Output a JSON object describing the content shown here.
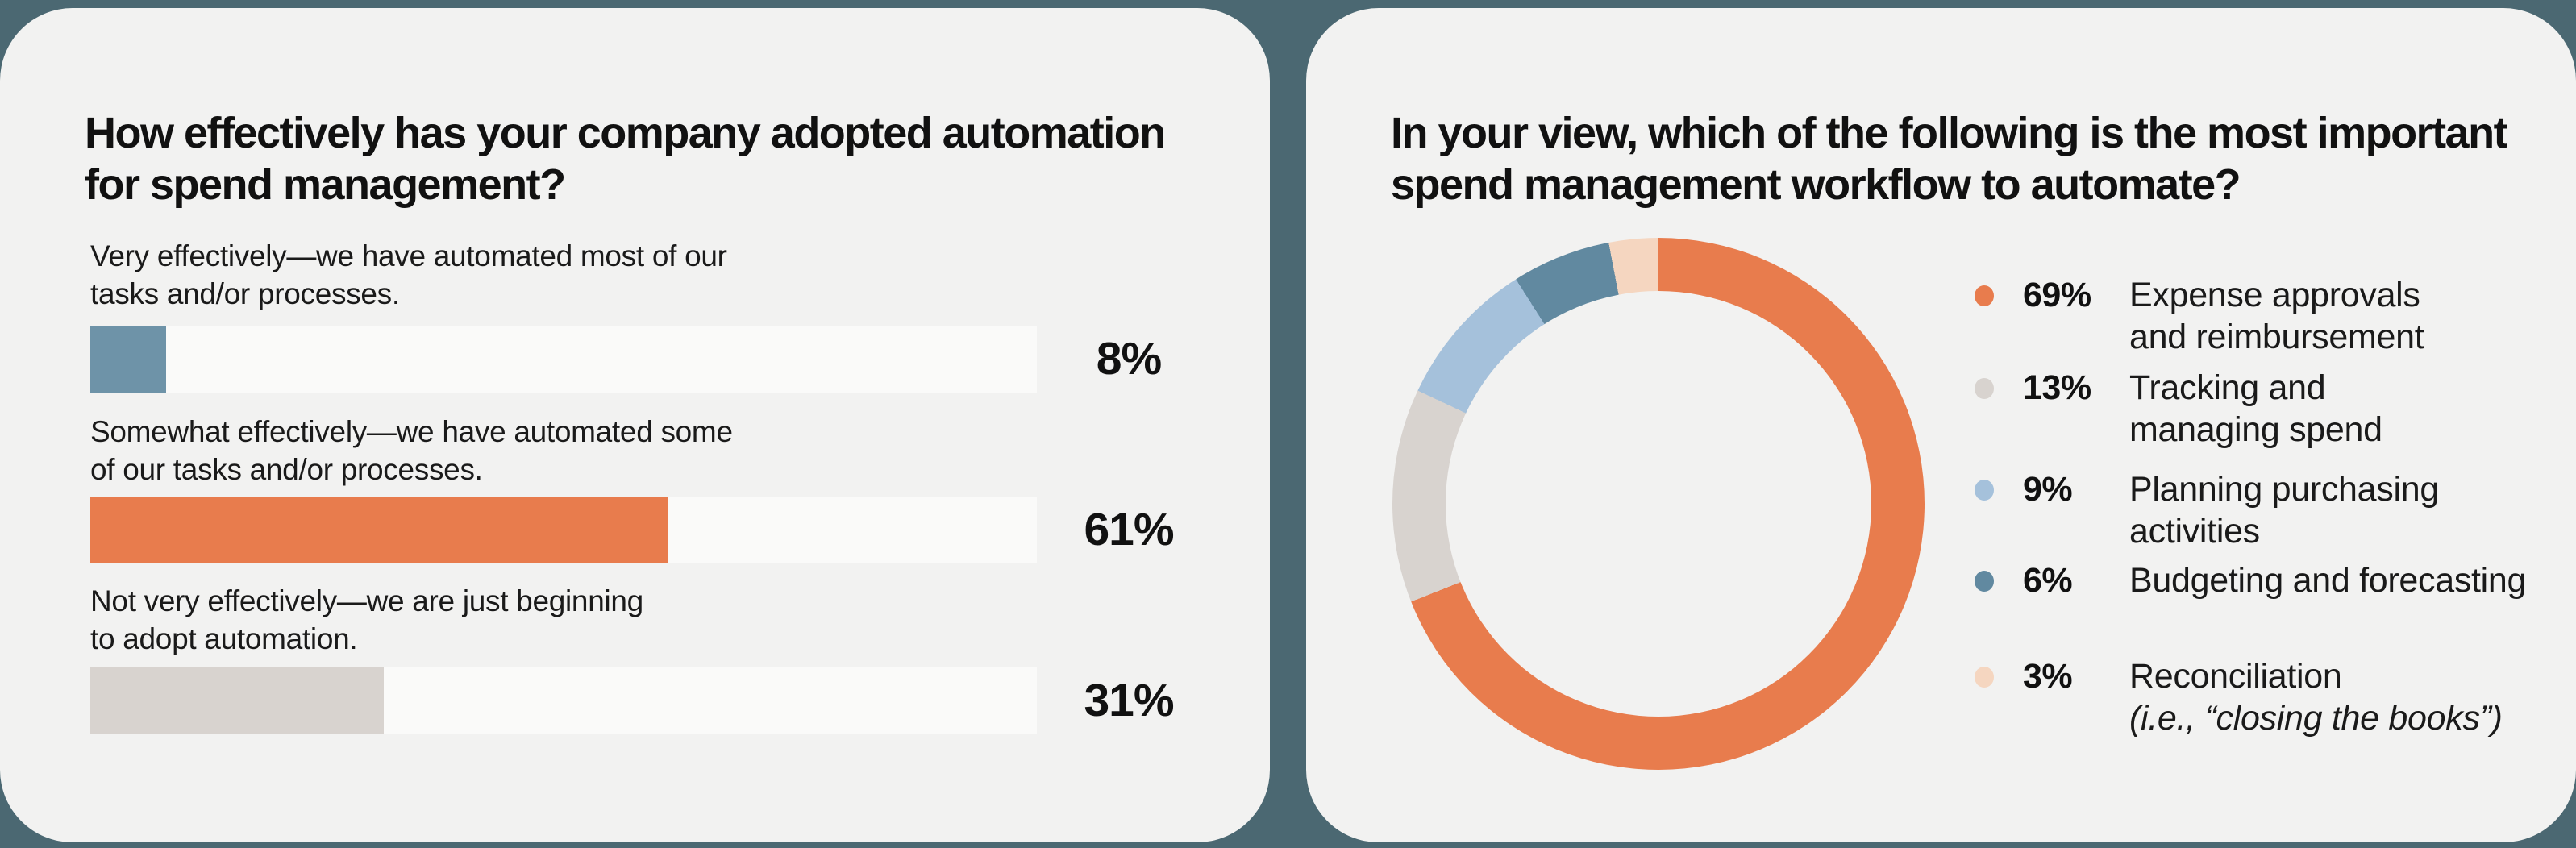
{
  "page": {
    "background_color": "#4B6872",
    "card_color": "#F2F2F1",
    "text_color": "#161616"
  },
  "chart_data": [
    {
      "type": "bar",
      "orientation": "horizontal",
      "title": "How effectively has your company adopted automation for spend management?",
      "title_lines": [
        "How effectively has your company adopted automation",
        "for spend management?"
      ],
      "xlim": [
        0,
        100
      ],
      "grid": false,
      "track_color": "#FAFAF9",
      "categories": [
        "Very effectively—we have automated most of our tasks and/or processes.",
        "Somewhat effectively—we have automated some of our tasks and/or processes.",
        "Not very effectively—we are just beginning to adopt automation."
      ],
      "values": [
        8,
        61,
        31
      ],
      "bars": [
        {
          "label_lines": [
            "Very effectively—we have automated most of our",
            "tasks and/or processes."
          ],
          "value": 8,
          "value_label": "8%",
          "color": "#6E93A8"
        },
        {
          "label_lines": [
            "Somewhat effectively—we have automated some",
            "of our tasks and/or processes."
          ],
          "value": 61,
          "value_label": "61%",
          "color": "#E87C4D"
        },
        {
          "label_lines": [
            "Not very effectively—we are just beginning",
            "to adopt automation."
          ],
          "value": 31,
          "value_label": "31%",
          "color": "#D8D3CF"
        }
      ]
    },
    {
      "type": "pie",
      "subtype": "donut",
      "title": "In your view, which of the following is the most important spend management workflow to automate?",
      "title_lines": [
        "In your view, which of the following is the most important",
        "spend management workflow to automate?"
      ],
      "start_angle_deg": 0,
      "direction": "clockwise",
      "legend_position": "right",
      "segments": [
        {
          "label": "Expense approvals and reimbursement",
          "label_lines": [
            "Expense approvals",
            "and reimbursement"
          ],
          "note": "",
          "value": 69,
          "value_label": "69%",
          "color": "#E87C4D"
        },
        {
          "label": "Tracking and managing spend",
          "label_lines": [
            "Tracking and",
            "managing spend"
          ],
          "note": "",
          "value": 13,
          "value_label": "13%",
          "color": "#D8D3CF"
        },
        {
          "label": "Planning purchasing activities",
          "label_lines": [
            "Planning purchasing",
            "activities"
          ],
          "note": "",
          "value": 9,
          "value_label": "9%",
          "color": "#A5C1DB"
        },
        {
          "label": "Budgeting and forecasting",
          "label_lines": [
            "Budgeting and forecasting",
            ""
          ],
          "note": "",
          "value": 6,
          "value_label": "6%",
          "color": "#6189A0"
        },
        {
          "label": "Reconciliation (i.e., “closing the books”)",
          "label_lines": [
            "Reconciliation",
            ""
          ],
          "note": "(i.e., “closing the books”)",
          "value": 3,
          "value_label": "3%",
          "color": "#F5D6C0"
        }
      ]
    }
  ]
}
